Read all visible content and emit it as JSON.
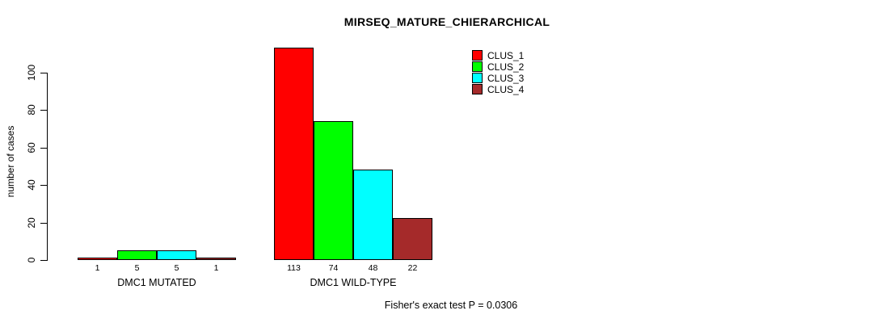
{
  "chart_data": {
    "type": "bar",
    "title": "MIRSEQ_MATURE_CHIERARCHICAL",
    "xlabel": "",
    "ylabel": "number of cases",
    "ylim": [
      0,
      115
    ],
    "yticks": [
      0,
      20,
      40,
      60,
      80,
      100
    ],
    "grid": false,
    "legend_position": "top-right",
    "categories": [
      "DMC1 MUTATED",
      "DMC1 WILD-TYPE"
    ],
    "series": [
      {
        "name": "CLUS_1",
        "color": "#ff0000",
        "values": [
          1,
          113
        ]
      },
      {
        "name": "CLUS_2",
        "color": "#00ff00",
        "values": [
          5,
          74
        ]
      },
      {
        "name": "CLUS_3",
        "color": "#00ffff",
        "values": [
          5,
          48
        ]
      },
      {
        "name": "CLUS_4",
        "color": "#a52a2a",
        "values": [
          1,
          22
        ]
      }
    ],
    "bar_labels": [
      [
        "1",
        "5",
        "5",
        "1"
      ],
      [
        "113",
        "74",
        "48",
        "22"
      ]
    ],
    "annotation": "Fisher's exact test P = 0.0306"
  }
}
